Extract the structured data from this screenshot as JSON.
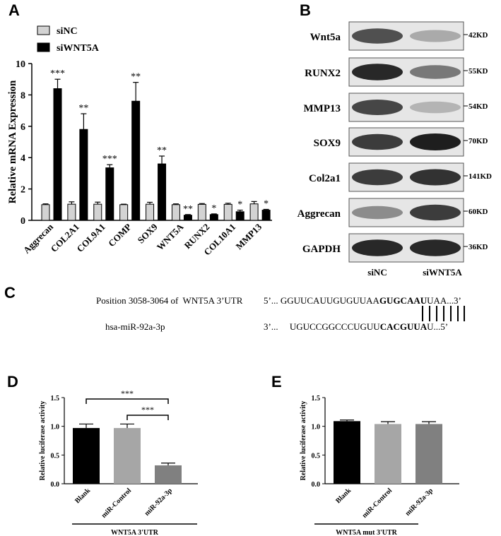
{
  "panels": {
    "a": "A",
    "b": "B",
    "c": "C",
    "d": "D",
    "e": "E"
  },
  "chart_data": [
    {
      "type": "bar",
      "panel": "A",
      "ylabel": "Relative mRNA   Expression",
      "ylim": [
        0,
        10
      ],
      "yticks": [
        "0",
        "2",
        "4",
        "6",
        "8",
        "10"
      ],
      "categories": [
        "Aggrecan",
        "COL2A1",
        "COL9A1",
        "COMP",
        "SOX9",
        "WNT5A",
        "RUNX2",
        "COL10A1",
        "MMP13"
      ],
      "legend_position": "top-left",
      "series": [
        {
          "name": "siNC",
          "color": "#d3d3d3",
          "values": [
            1.0,
            1.03,
            1.03,
            1.0,
            1.03,
            1.0,
            1.02,
            1.02,
            1.05
          ],
          "errors": [
            0.05,
            0.15,
            0.13,
            0.03,
            0.12,
            0.05,
            0.05,
            0.07,
            0.15
          ]
        },
        {
          "name": "siWNT5A",
          "color": "#000000",
          "values": [
            8.4,
            5.8,
            3.35,
            7.6,
            3.6,
            0.33,
            0.37,
            0.55,
            0.65
          ],
          "errors": [
            0.6,
            1.0,
            0.2,
            1.2,
            0.5,
            0.04,
            0.04,
            0.1,
            0.05
          ]
        }
      ],
      "significance": [
        "***",
        "**",
        "***",
        "**",
        "**",
        "**",
        "*",
        "*",
        "*"
      ]
    },
    {
      "type": "bar",
      "panel": "D",
      "ylabel": "Relative luciferase activity",
      "xlabel": "WNT5A 3'UTR",
      "ylim": [
        0,
        1.5
      ],
      "yticks": [
        "0.0",
        "0.5",
        "1.0",
        "1.5"
      ],
      "categories": [
        "Blank",
        "miR-Control",
        "miR-92a-3p"
      ],
      "colors": [
        "#000000",
        "#a6a6a6",
        "#808080"
      ],
      "values": [
        0.97,
        0.97,
        0.32
      ],
      "errors": [
        0.07,
        0.07,
        0.04
      ],
      "comparisons": [
        {
          "from": 0,
          "to": 2,
          "label": "***"
        },
        {
          "from": 1,
          "to": 2,
          "label": "***"
        }
      ]
    },
    {
      "type": "bar",
      "panel": "E",
      "ylabel": "Relative luciferase activity",
      "xlabel": "WNT5A mut 3'UTR",
      "ylim": [
        0,
        1.5
      ],
      "yticks": [
        "0.0",
        "0.5",
        "1.0",
        "1.5"
      ],
      "categories": [
        "Blank",
        "miR-Control",
        "miR-92a-3p"
      ],
      "colors": [
        "#000000",
        "#a6a6a6",
        "#808080"
      ],
      "values": [
        1.09,
        1.04,
        1.04
      ],
      "errors": [
        0.02,
        0.04,
        0.04
      ]
    }
  ],
  "western_blot": {
    "rows": [
      {
        "protein": "Wnt5a",
        "size": "42KD",
        "intensity": [
          0.75,
          0.3
        ]
      },
      {
        "protein": "RUNX2",
        "size": "55KD",
        "intensity": [
          0.95,
          0.55
        ]
      },
      {
        "protein": "MMP13",
        "size": "54KD",
        "intensity": [
          0.8,
          0.25
        ]
      },
      {
        "protein": "SOX9",
        "size": "70KD",
        "intensity": [
          0.85,
          1.0
        ]
      },
      {
        "protein": "Col2a1",
        "size": "141KD",
        "intensity": [
          0.85,
          0.9
        ]
      },
      {
        "protein": "Aggrecan",
        "size": "60KD",
        "intensity": [
          0.45,
          0.85
        ]
      },
      {
        "protein": "GAPDH",
        "size": "36KD",
        "intensity": [
          0.95,
          0.95
        ]
      }
    ],
    "lanes": [
      "siNC",
      "siWNT5A"
    ]
  },
  "sequence": {
    "position_label": "Position 3058-3064 of  WNT5A 3’UTR",
    "utr_prefix": "5’... GGUUCAUUGUGUUAA",
    "utr_seed": "GUGCAAU",
    "utr_suffix": "UAA...3’",
    "mirna_label": "hsa-miR-92a-3p",
    "mirna_prefix": "3’...     UGUCCGGCCCUGUU",
    "mirna_seed": "CACGUUA",
    "mirna_suffix": "U...5’"
  }
}
